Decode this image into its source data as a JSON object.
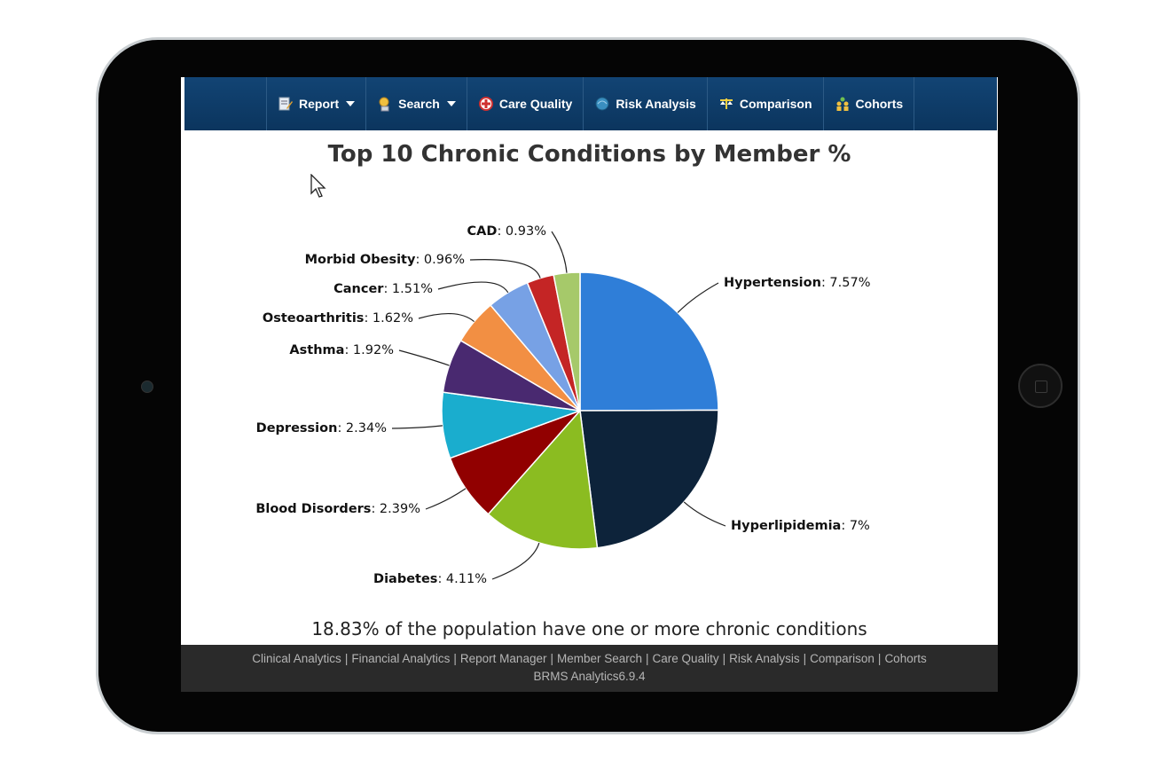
{
  "nav": {
    "items": [
      {
        "label": "Report",
        "icon": "report-icon",
        "dropdown": true
      },
      {
        "label": "Search",
        "icon": "search-icon",
        "dropdown": true
      },
      {
        "label": "Care Quality",
        "icon": "care-quality-icon",
        "dropdown": false
      },
      {
        "label": "Risk Analysis",
        "icon": "risk-analysis-icon",
        "dropdown": false
      },
      {
        "label": "Comparison",
        "icon": "comparison-icon",
        "dropdown": false
      },
      {
        "label": "Cohorts",
        "icon": "cohorts-icon",
        "dropdown": false
      }
    ]
  },
  "chart_data": {
    "type": "pie",
    "title": "Top 10 Chronic Conditions by Member %",
    "subtitle": "18.83% of the population have one or more chronic conditions",
    "slices": [
      {
        "name": "Hypertension",
        "value": 7.57,
        "label": "7.57%",
        "color": "#2f7ed8"
      },
      {
        "name": "Hyperlipidemia",
        "value": 7,
        "label": "7%",
        "color": "#0d233a"
      },
      {
        "name": "Diabetes",
        "value": 4.11,
        "label": "4.11%",
        "color": "#8bbc21"
      },
      {
        "name": "Blood Disorders",
        "value": 2.39,
        "label": "2.39%",
        "color": "#910000"
      },
      {
        "name": "Depression",
        "value": 2.34,
        "label": "2.34%",
        "color": "#1aadce"
      },
      {
        "name": "Asthma",
        "value": 1.92,
        "label": "1.92%",
        "color": "#492970"
      },
      {
        "name": "Osteoarthritis",
        "value": 1.62,
        "label": "1.62%",
        "color": "#f28f43"
      },
      {
        "name": "Cancer",
        "value": 1.51,
        "label": "1.51%",
        "color": "#77a1e5"
      },
      {
        "name": "Morbid Obesity",
        "value": 0.96,
        "label": "0.96%",
        "color": "#c42525"
      },
      {
        "name": "CAD",
        "value": 0.93,
        "label": "0.93%",
        "color": "#a6c96a"
      }
    ]
  },
  "footer": {
    "links": [
      "Clinical Analytics",
      "Financial Analytics",
      "Report Manager",
      "Member Search",
      "Care Quality",
      "Risk Analysis",
      "Comparison",
      "Cohorts"
    ],
    "separator": "|",
    "version": "BRMS Analytics6.9.4"
  }
}
